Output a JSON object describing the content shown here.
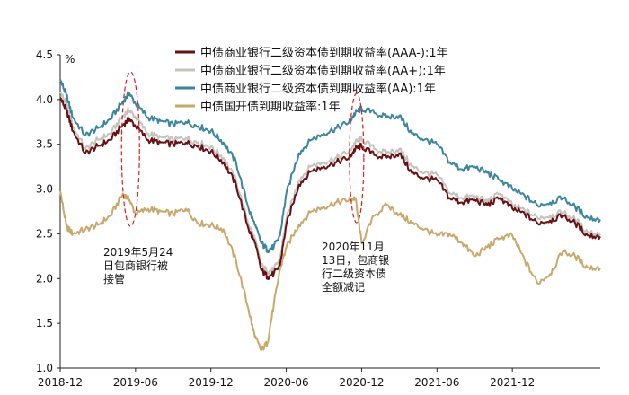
{
  "chart_data": {
    "type": "line",
    "title": "",
    "ylabel": "%",
    "xlabel": "",
    "ylim": [
      1.0,
      4.5
    ],
    "xlim": [
      0,
      43
    ],
    "grid": false,
    "legend_position": "top-right",
    "y_ticks": [
      "1.0",
      "1.5",
      "2.0",
      "2.5",
      "3.0",
      "3.5",
      "4.0",
      "4.5"
    ],
    "x_ticks": [
      {
        "label": "2018-12",
        "x": 0
      },
      {
        "label": "2019-06",
        "x": 6
      },
      {
        "label": "2019-12",
        "x": 12
      },
      {
        "label": "2020-06",
        "x": 18
      },
      {
        "label": "2020-12",
        "x": 24
      },
      {
        "label": "2021-06",
        "x": 30
      },
      {
        "label": "2021-12",
        "x": 36
      }
    ],
    "x": [
      0,
      0.5,
      1,
      2,
      3,
      4,
      5,
      5.5,
      6,
      7,
      8,
      9,
      10,
      11,
      12,
      13,
      14,
      15,
      15.5,
      16,
      16.5,
      17,
      17.5,
      18,
      19,
      20,
      21,
      22,
      23,
      23.5,
      24,
      25,
      26,
      27,
      28,
      29,
      30,
      31,
      32,
      33,
      34,
      35,
      36,
      37,
      38,
      39,
      40,
      41,
      42,
      43
    ],
    "series": [
      {
        "name": "中债商业银行二级资本债到期收益率(AAA-):1年",
        "color": "#6b0f12",
        "values": [
          4.02,
          3.88,
          3.65,
          3.4,
          3.48,
          3.55,
          3.72,
          3.78,
          3.7,
          3.55,
          3.52,
          3.5,
          3.52,
          3.48,
          3.42,
          3.3,
          3.05,
          2.55,
          2.4,
          2.1,
          2.02,
          2.05,
          2.15,
          2.6,
          3.05,
          3.2,
          3.25,
          3.3,
          3.35,
          3.45,
          3.48,
          3.38,
          3.35,
          3.4,
          3.18,
          3.12,
          3.1,
          2.9,
          2.85,
          2.88,
          2.82,
          2.9,
          2.78,
          2.72,
          2.62,
          2.65,
          2.7,
          2.62,
          2.48,
          2.47
        ]
      },
      {
        "name": "中债商业银行二级资本债到期收益率(AA+):1年",
        "color": "#c4c4be",
        "values": [
          4.08,
          3.95,
          3.7,
          3.45,
          3.55,
          3.62,
          3.82,
          3.88,
          3.8,
          3.62,
          3.58,
          3.55,
          3.57,
          3.52,
          3.47,
          3.35,
          3.1,
          2.6,
          2.45,
          2.15,
          2.08,
          2.1,
          2.22,
          2.66,
          3.1,
          3.26,
          3.3,
          3.35,
          3.42,
          3.52,
          3.56,
          3.45,
          3.4,
          3.45,
          3.25,
          3.18,
          3.16,
          2.96,
          2.9,
          2.92,
          2.86,
          2.95,
          2.82,
          2.76,
          2.68,
          2.7,
          2.74,
          2.66,
          2.52,
          2.5
        ]
      },
      {
        "name": "中债商业银行二级资本债到期收益率(AA):1年",
        "color": "#3a86a0",
        "values": [
          4.22,
          4.05,
          3.8,
          3.6,
          3.68,
          3.78,
          3.98,
          4.07,
          3.95,
          3.8,
          3.76,
          3.72,
          3.75,
          3.7,
          3.65,
          3.52,
          3.3,
          2.78,
          2.6,
          2.4,
          2.32,
          2.35,
          2.48,
          2.95,
          3.4,
          3.55,
          3.62,
          3.68,
          3.75,
          3.85,
          3.9,
          3.85,
          3.8,
          3.82,
          3.62,
          3.55,
          3.5,
          3.3,
          3.22,
          3.25,
          3.18,
          3.1,
          3.0,
          2.92,
          2.82,
          2.85,
          2.9,
          2.8,
          2.68,
          2.66
        ]
      },
      {
        "name": "中债国开债到期收益率:1年",
        "color": "#c8a96a",
        "values": [
          2.98,
          2.58,
          2.5,
          2.55,
          2.6,
          2.7,
          2.95,
          2.88,
          2.72,
          2.78,
          2.75,
          2.72,
          2.78,
          2.62,
          2.6,
          2.55,
          2.2,
          1.65,
          1.35,
          1.2,
          1.28,
          1.7,
          2.1,
          2.35,
          2.6,
          2.75,
          2.8,
          2.85,
          2.88,
          2.9,
          2.4,
          2.7,
          2.82,
          2.72,
          2.62,
          2.55,
          2.48,
          2.5,
          2.4,
          2.25,
          2.35,
          2.45,
          2.48,
          2.2,
          1.95,
          2.05,
          2.3,
          2.25,
          2.12,
          2.12
        ]
      }
    ],
    "annotations": [
      {
        "lines": [
          "2019年5月24",
          "日包商银行被",
          "接管"
        ],
        "x": 5.5
      },
      {
        "lines": [
          "2020年11月",
          "13日，包商银",
          "行二级资本债",
          "全额减记"
        ],
        "x": 23.5
      }
    ]
  }
}
